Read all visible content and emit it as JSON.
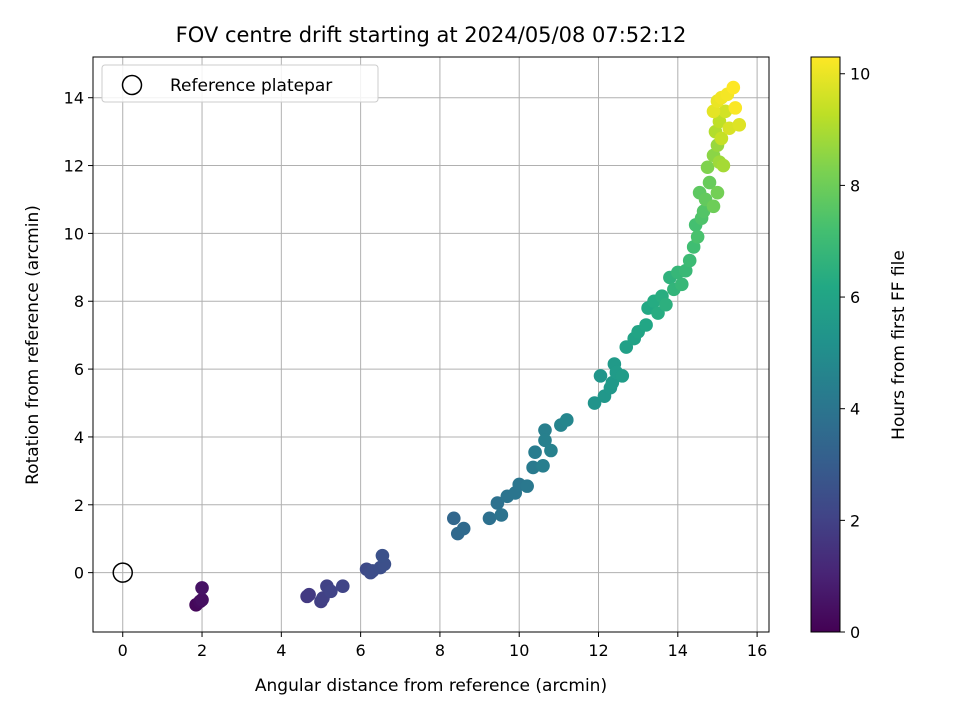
{
  "chart_data": {
    "type": "scatter",
    "title": "FOV centre drift starting at 2024/05/08 07:52:12",
    "xlabel": "Angular distance from reference (arcmin)",
    "ylabel": "Rotation from reference (arcmin)",
    "xlim": [
      -0.75,
      16.3
    ],
    "ylim": [
      -1.75,
      15.2
    ],
    "xticks": [
      0,
      2,
      4,
      6,
      8,
      10,
      12,
      14,
      16
    ],
    "yticks": [
      0,
      2,
      4,
      6,
      8,
      10,
      12,
      14
    ],
    "grid": true,
    "legend": {
      "location": "upper-left",
      "entries": [
        {
          "label": "Reference platepar",
          "marker": "open-circle"
        }
      ]
    },
    "colorbar": {
      "label": "Hours from first FF file",
      "colormap": "viridis",
      "range": [
        0,
        10.3
      ],
      "ticks": [
        0,
        2,
        4,
        6,
        8,
        10
      ]
    },
    "reference_point": {
      "x": 0,
      "y": 0
    },
    "points": [
      [
        1.85,
        -0.95,
        0.2
      ],
      [
        1.95,
        -0.85,
        0.3
      ],
      [
        2.0,
        -0.8,
        0.4
      ],
      [
        2.0,
        -0.45,
        0.5
      ],
      [
        4.65,
        -0.7,
        1.7
      ],
      [
        4.7,
        -0.65,
        1.75
      ],
      [
        5.0,
        -0.85,
        1.9
      ],
      [
        5.05,
        -0.75,
        1.95
      ],
      [
        5.15,
        -0.4,
        2.0
      ],
      [
        5.25,
        -0.55,
        2.05
      ],
      [
        5.55,
        -0.4,
        2.1
      ],
      [
        6.15,
        0.1,
        2.3
      ],
      [
        6.25,
        0.0,
        2.35
      ],
      [
        6.3,
        0.05,
        2.4
      ],
      [
        6.5,
        0.15,
        2.45
      ],
      [
        6.6,
        0.25,
        2.5
      ],
      [
        6.55,
        0.5,
        2.55
      ],
      [
        8.35,
        1.6,
        3.4
      ],
      [
        8.45,
        1.15,
        3.5
      ],
      [
        8.6,
        1.3,
        3.55
      ],
      [
        9.25,
        1.6,
        3.8
      ],
      [
        9.45,
        2.05,
        3.85
      ],
      [
        9.55,
        1.7,
        3.9
      ],
      [
        9.7,
        2.25,
        3.95
      ],
      [
        9.9,
        2.35,
        4.0
      ],
      [
        10.0,
        2.6,
        4.05
      ],
      [
        10.2,
        2.55,
        4.1
      ],
      [
        10.35,
        3.1,
        4.2
      ],
      [
        10.4,
        3.55,
        4.3
      ],
      [
        10.6,
        3.15,
        4.35
      ],
      [
        10.65,
        4.2,
        4.4
      ],
      [
        10.65,
        3.9,
        4.45
      ],
      [
        10.8,
        3.6,
        4.5
      ],
      [
        11.05,
        4.35,
        4.6
      ],
      [
        11.2,
        4.5,
        4.7
      ],
      [
        11.9,
        5.0,
        5.3
      ],
      [
        12.05,
        5.8,
        5.35
      ],
      [
        12.15,
        5.2,
        5.4
      ],
      [
        12.3,
        5.45,
        5.45
      ],
      [
        12.35,
        5.6,
        5.5
      ],
      [
        12.4,
        6.15,
        5.55
      ],
      [
        12.45,
        5.9,
        5.6
      ],
      [
        12.6,
        5.8,
        5.65
      ],
      [
        12.7,
        6.65,
        5.8
      ],
      [
        12.9,
        6.9,
        5.9
      ],
      [
        13.0,
        7.1,
        6.0
      ],
      [
        13.2,
        7.3,
        6.1
      ],
      [
        13.25,
        7.8,
        6.2
      ],
      [
        13.4,
        8.0,
        6.3
      ],
      [
        13.5,
        7.65,
        6.35
      ],
      [
        13.6,
        8.15,
        6.4
      ],
      [
        13.7,
        7.9,
        6.5
      ],
      [
        13.8,
        8.7,
        6.6
      ],
      [
        13.9,
        8.35,
        6.7
      ],
      [
        14.0,
        8.85,
        6.8
      ],
      [
        14.1,
        8.5,
        6.85
      ],
      [
        14.2,
        8.9,
        6.9
      ],
      [
        14.3,
        9.2,
        7.0
      ],
      [
        14.4,
        9.6,
        7.1
      ],
      [
        14.45,
        10.25,
        7.2
      ],
      [
        14.5,
        9.9,
        7.3
      ],
      [
        14.6,
        10.45,
        7.4
      ],
      [
        14.65,
        10.65,
        7.5
      ],
      [
        14.55,
        11.2,
        7.7
      ],
      [
        14.7,
        11.0,
        7.8
      ],
      [
        14.8,
        11.5,
        7.9
      ],
      [
        14.9,
        10.8,
        8.0
      ],
      [
        15.0,
        11.2,
        8.1
      ],
      [
        14.75,
        11.95,
        8.3
      ],
      [
        14.9,
        12.3,
        8.5
      ],
      [
        15.0,
        12.6,
        8.7
      ],
      [
        15.05,
        12.1,
        8.8
      ],
      [
        15.15,
        12.0,
        8.9
      ],
      [
        14.95,
        13.0,
        9.1
      ],
      [
        15.05,
        13.3,
        9.3
      ],
      [
        15.1,
        12.8,
        9.4
      ],
      [
        15.2,
        13.6,
        9.6
      ],
      [
        15.3,
        13.1,
        9.7
      ],
      [
        15.55,
        13.2,
        9.8
      ],
      [
        14.9,
        13.6,
        9.9
      ],
      [
        15.0,
        13.9,
        10.0
      ],
      [
        15.1,
        14.0,
        10.1
      ],
      [
        15.25,
        14.1,
        10.15
      ],
      [
        15.4,
        14.3,
        10.3
      ],
      [
        15.45,
        13.7,
        10.25
      ]
    ]
  }
}
